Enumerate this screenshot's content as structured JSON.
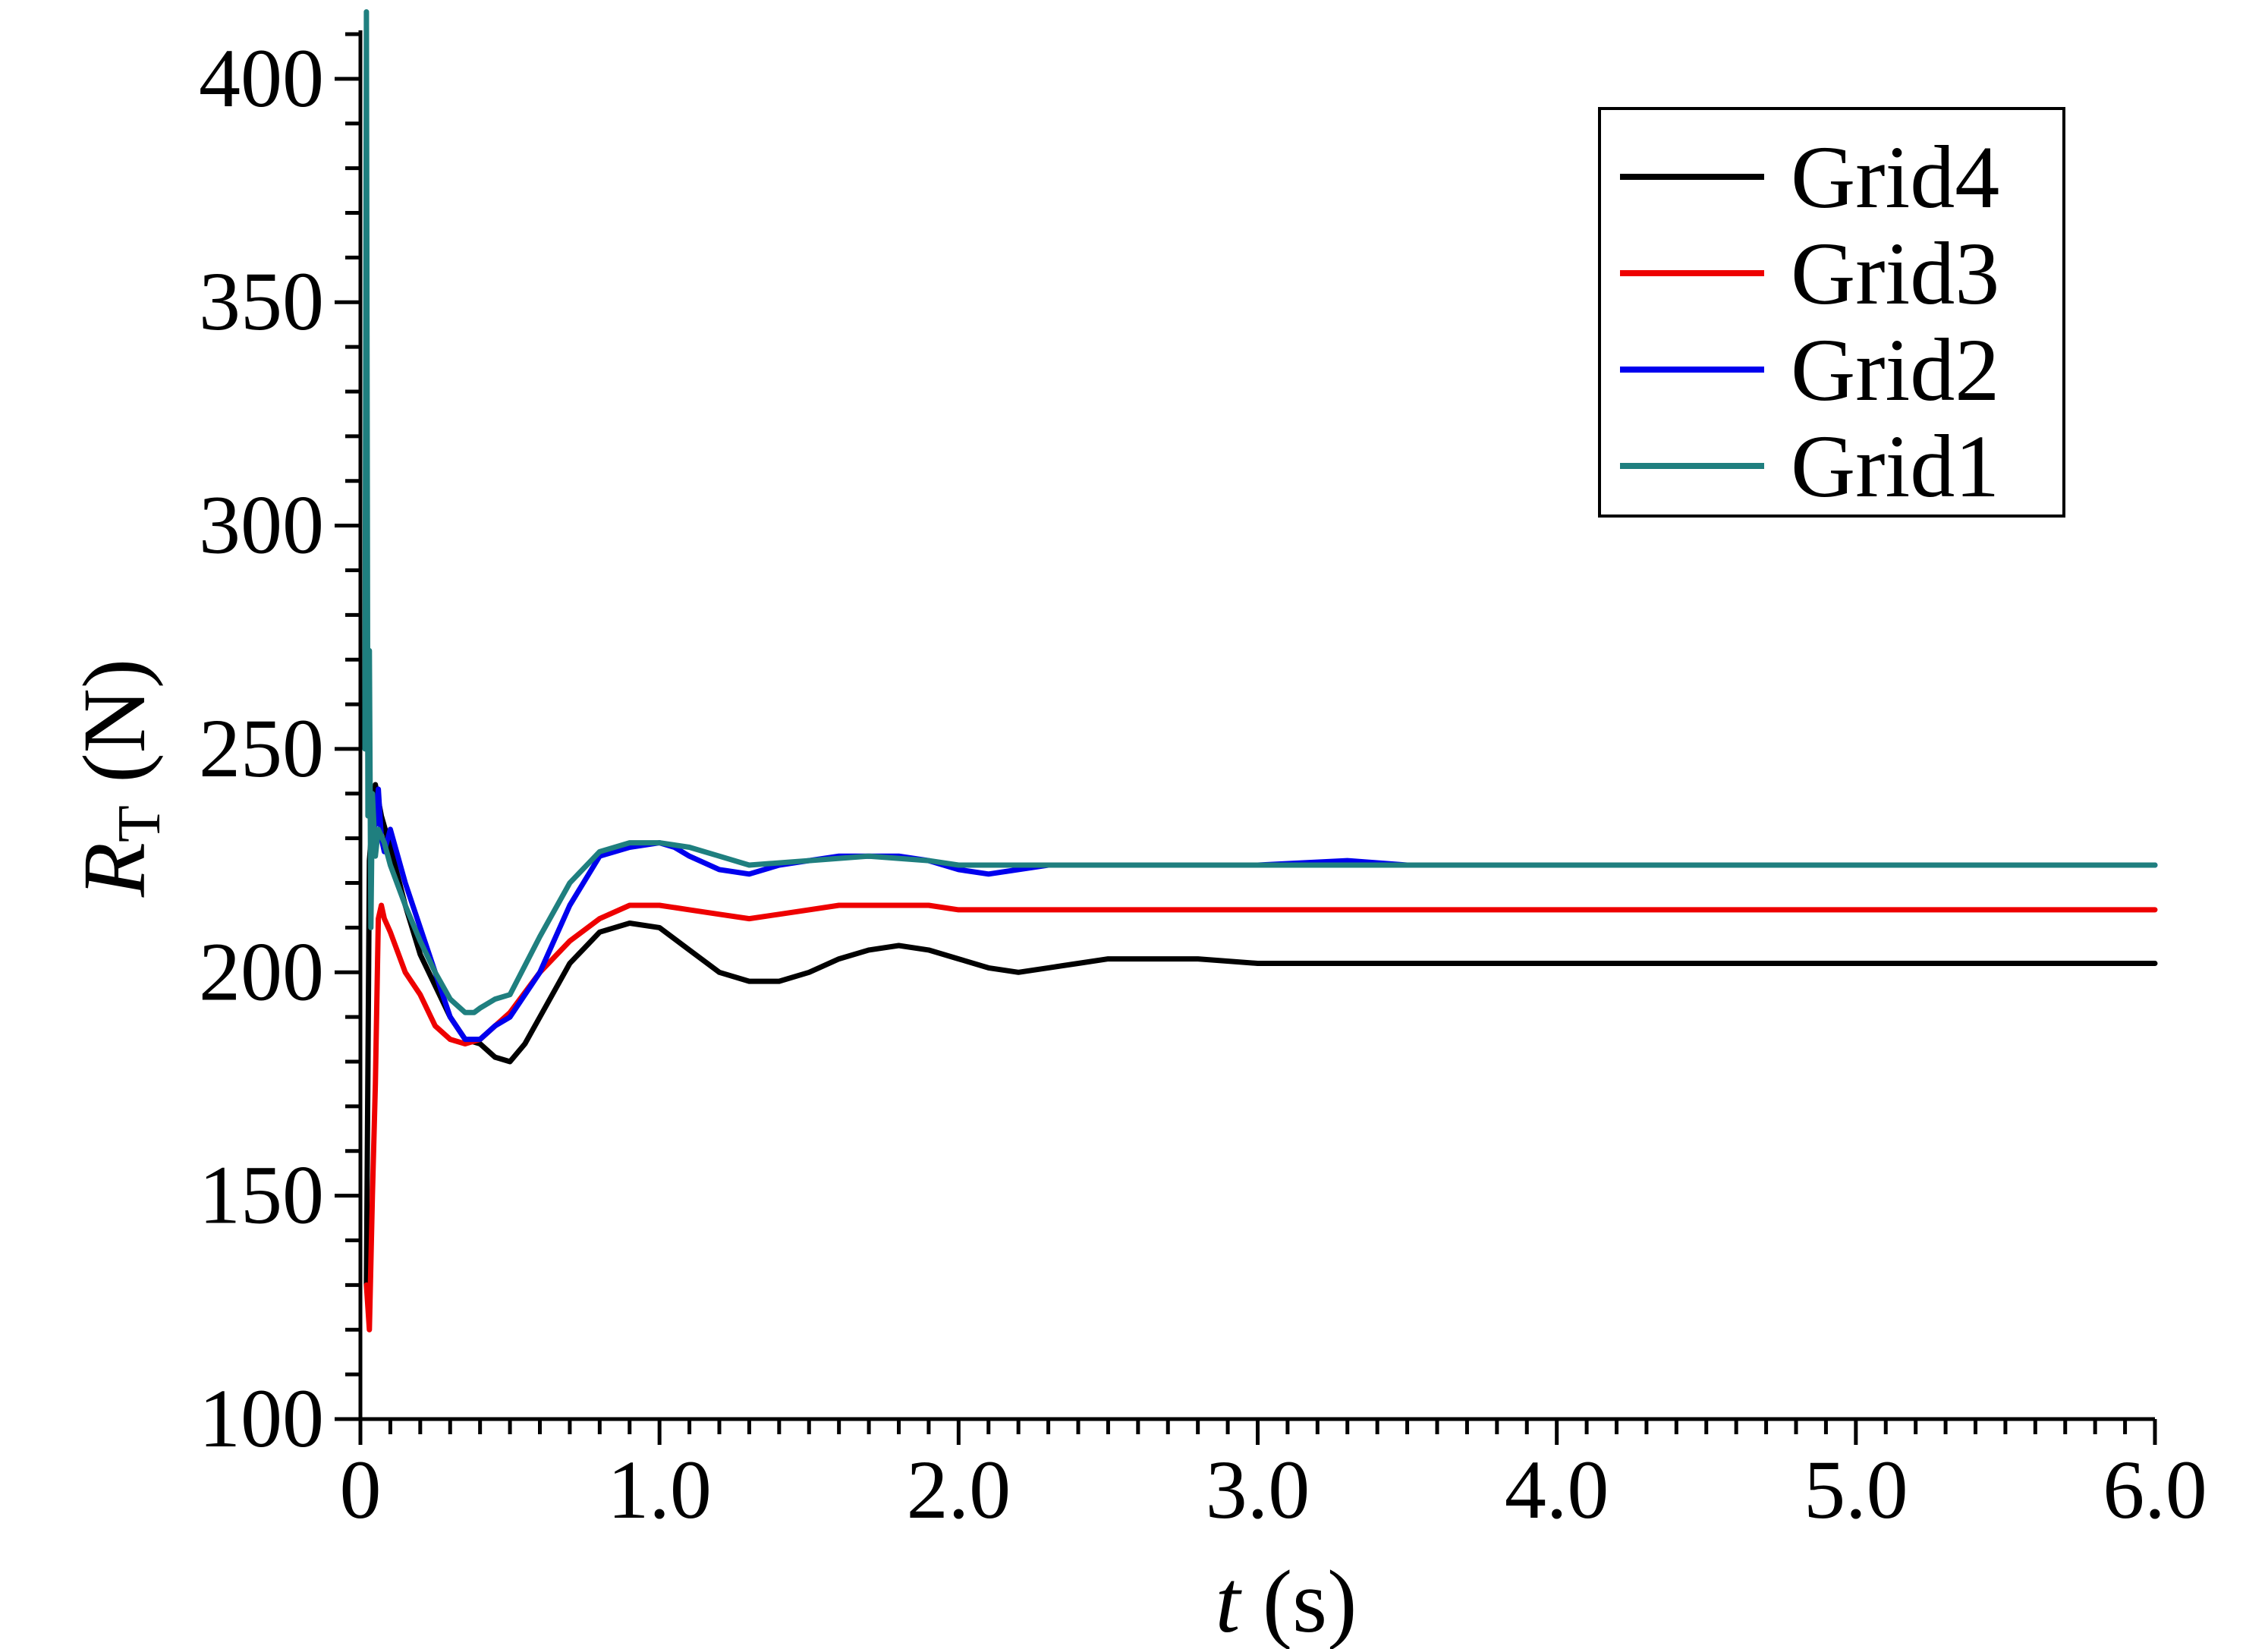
{
  "chart_data": {
    "type": "line",
    "title": "",
    "xlabel": {
      "var": "t",
      "unit": " (s)"
    },
    "ylabel": {
      "var": "R",
      "sub": "T",
      "unit": " (N)"
    },
    "xlim": [
      0,
      6.0
    ],
    "ylim": [
      100,
      410
    ],
    "x_ticks": [
      0,
      1.0,
      2.0,
      3.0,
      4.0,
      5.0,
      6.0
    ],
    "x_tick_labels": [
      "0",
      "1.0",
      "2.0",
      "3.0",
      "4.0",
      "5.0",
      "6.0"
    ],
    "y_ticks": [
      100,
      150,
      200,
      250,
      300,
      350,
      400
    ],
    "y_tick_labels": [
      "100",
      "150",
      "200",
      "250",
      "300",
      "350",
      "400"
    ],
    "legend_position": "top-right",
    "series": [
      {
        "name": "Grid4",
        "color": "#000000",
        "x": [
          0.02,
          0.03,
          0.05,
          0.07,
          0.1,
          0.15,
          0.2,
          0.3,
          0.35,
          0.4,
          0.45,
          0.5,
          0.55,
          0.6,
          0.7,
          0.8,
          0.9,
          1.0,
          1.1,
          1.2,
          1.3,
          1.4,
          1.5,
          1.6,
          1.7,
          1.8,
          1.9,
          2.0,
          2.1,
          2.2,
          2.3,
          2.4,
          2.5,
          2.6,
          2.7,
          2.8,
          3.0,
          3.2,
          3.5,
          3.7,
          4.0,
          4.5,
          5.0,
          5.5,
          6.0
        ],
        "y": [
          130,
          225,
          242,
          235,
          228,
          215,
          204,
          190,
          185,
          184,
          181,
          180,
          184,
          190,
          202,
          209,
          211,
          210,
          205,
          200,
          198,
          198,
          200,
          203,
          205,
          206,
          205,
          203,
          201,
          200,
          201,
          202,
          203,
          203,
          203,
          203,
          202,
          202,
          202,
          202,
          202,
          202,
          202,
          202,
          202
        ]
      },
      {
        "name": "Grid3",
        "color": "#ee0000",
        "x": [
          0.02,
          0.03,
          0.04,
          0.05,
          0.06,
          0.07,
          0.08,
          0.1,
          0.15,
          0.2,
          0.25,
          0.3,
          0.35,
          0.4,
          0.5,
          0.6,
          0.7,
          0.8,
          0.9,
          1.0,
          1.1,
          1.2,
          1.3,
          1.4,
          1.5,
          1.6,
          1.7,
          1.8,
          1.9,
          2.0,
          2.1,
          2.2,
          2.4,
          2.6,
          3.0,
          3.5,
          4.0,
          5.0,
          6.0
        ],
        "y": [
          130,
          120,
          150,
          175,
          212,
          215,
          212,
          209,
          200,
          195,
          188,
          185,
          184,
          185,
          191,
          200,
          207,
          212,
          215,
          215,
          214,
          213,
          212,
          213,
          214,
          215,
          215,
          215,
          215,
          214,
          214,
          214,
          214,
          214,
          214,
          214,
          214,
          214,
          214
        ]
      },
      {
        "name": "Grid2",
        "color": "#0000ee",
        "x": [
          0.02,
          0.03,
          0.05,
          0.06,
          0.07,
          0.08,
          0.1,
          0.15,
          0.2,
          0.3,
          0.35,
          0.4,
          0.45,
          0.5,
          0.6,
          0.7,
          0.8,
          0.9,
          1.0,
          1.05,
          1.1,
          1.2,
          1.3,
          1.4,
          1.5,
          1.6,
          1.7,
          1.8,
          1.9,
          2.0,
          2.1,
          2.2,
          2.3,
          2.5,
          3.0,
          3.3,
          3.5,
          4.0,
          5.0,
          6.0
        ],
        "y": [
          260,
          240,
          233,
          241,
          230,
          227,
          232,
          220,
          210,
          190,
          185,
          185,
          188,
          190,
          200,
          215,
          226,
          228,
          229,
          228,
          226,
          223,
          222,
          224,
          225,
          226,
          226,
          226,
          225,
          223,
          222,
          223,
          224,
          224,
          224,
          225,
          224,
          224,
          224,
          224
        ]
      },
      {
        "name": "Grid1",
        "color": "#1f7f7f",
        "x": [
          0.015,
          0.02,
          0.025,
          0.03,
          0.035,
          0.04,
          0.05,
          0.06,
          0.08,
          0.1,
          0.15,
          0.2,
          0.25,
          0.3,
          0.35,
          0.38,
          0.4,
          0.45,
          0.5,
          0.6,
          0.7,
          0.8,
          0.9,
          1.0,
          1.1,
          1.2,
          1.3,
          1.5,
          1.7,
          1.9,
          2.0,
          2.1,
          2.5,
          3.0,
          4.0,
          5.0,
          6.0
        ],
        "y": [
          250,
          415,
          235,
          272,
          210,
          240,
          226,
          232,
          229,
          224,
          215,
          207,
          200,
          194,
          191,
          191,
          192,
          194,
          195,
          208,
          220,
          227,
          229,
          229,
          228,
          226,
          224,
          225,
          226,
          225,
          224,
          224,
          224,
          224,
          224,
          224,
          224
        ]
      }
    ]
  }
}
